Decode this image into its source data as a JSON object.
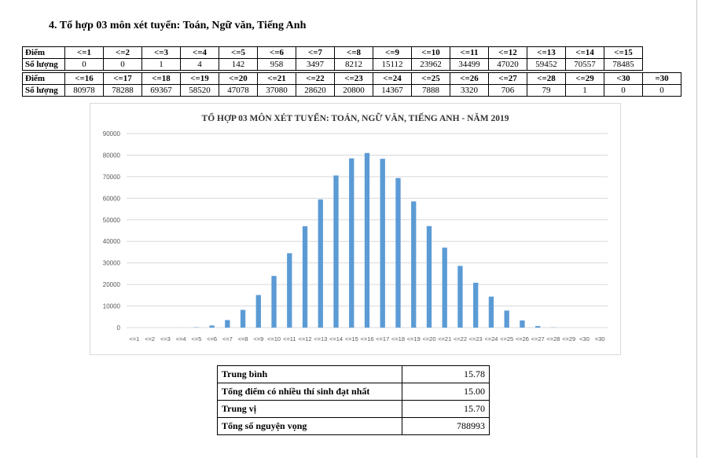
{
  "heading": "4. Tổ hợp 03 môn xét tuyển: Toán, Ngữ văn, Tiếng Anh",
  "score_table": {
    "row_label_score": "Điểm",
    "row_label_count": "Số lượng",
    "part1": {
      "scores": [
        "<=1",
        "<=2",
        "<=3",
        "<=4",
        "<=5",
        "<=6",
        "<=7",
        "<=8",
        "<=9",
        "<=10",
        "<=11",
        "<=12",
        "<=13",
        "<=14",
        "<=15"
      ],
      "counts": [
        "0",
        "0",
        "1",
        "4",
        "142",
        "958",
        "3497",
        "8212",
        "15112",
        "23962",
        "34499",
        "47020",
        "59452",
        "70557",
        "78485"
      ]
    },
    "part2": {
      "scores": [
        "<=16",
        "<=17",
        "<=18",
        "<=19",
        "<=20",
        "<=21",
        "<=22",
        "<=23",
        "<=24",
        "<=25",
        "<=26",
        "<=27",
        "<=28",
        "<=29",
        "<30",
        "=30"
      ],
      "counts": [
        "80978",
        "78288",
        "69367",
        "58520",
        "47078",
        "37080",
        "28620",
        "20800",
        "14367",
        "7888",
        "3320",
        "706",
        "79",
        "1",
        "0",
        "0"
      ]
    }
  },
  "chart_data": {
    "type": "bar",
    "title": "TỔ HỢP 03 MÔN XÉT TUYỂN: TOÁN, NGỮ VĂN, TIẾNG ANH - NĂM 2019",
    "categories": [
      "<=1",
      "<=2",
      "<=3",
      "<=4",
      "<=5",
      "<=6",
      "<=7",
      "<=8",
      "<=9",
      "<=10",
      "<=11",
      "<=12",
      "<=13",
      "<=14",
      "<=15",
      "<=16",
      "<=17",
      "<=18",
      "<=19",
      "<=20",
      "<=21",
      "<=22",
      "<=23",
      "<=24",
      "<=25",
      "<=26",
      "<=27",
      "<=28",
      "<=29",
      "<30",
      "=30"
    ],
    "values": [
      0,
      0,
      1,
      4,
      142,
      958,
      3497,
      8212,
      15112,
      23962,
      34499,
      47020,
      59452,
      70557,
      78485,
      80978,
      78288,
      69367,
      58520,
      47078,
      37080,
      28620,
      20800,
      14367,
      7888,
      3320,
      706,
      79,
      1,
      0,
      0
    ],
    "yticks": [
      "0",
      "10000",
      "20000",
      "30000",
      "40000",
      "50000",
      "60000",
      "70000",
      "80000",
      "90000"
    ],
    "ylim": [
      0,
      90000
    ],
    "color": "#5b9bd5",
    "grid": true
  },
  "stats": [
    {
      "label": "Trung bình",
      "value": "15.78"
    },
    {
      "label": "Tổng điểm có nhiều thí sinh đạt nhất",
      "value": "15.00"
    },
    {
      "label": "Trung vị",
      "value": "15.70"
    },
    {
      "label": "Tổng số nguyện vọng",
      "value": "788993"
    }
  ]
}
